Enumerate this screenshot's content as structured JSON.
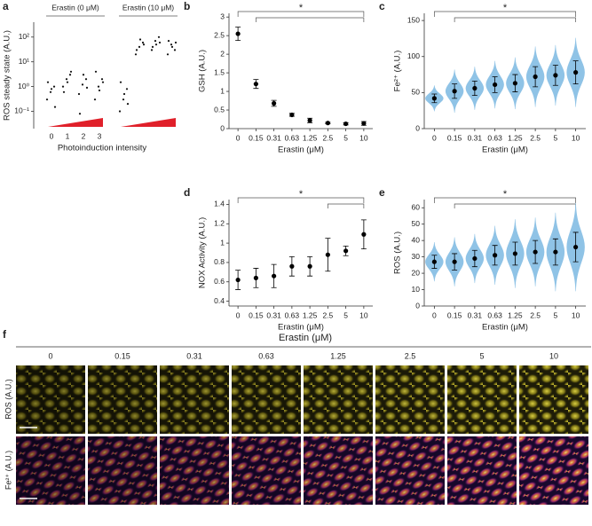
{
  "chart_data": [
    {
      "type": "strip",
      "panel_label": "a",
      "ylabel": "ROS steady state (A.U.)",
      "xlabel": "Photoinduction intensity",
      "log_y": true,
      "ylim": [
        0.02,
        400
      ],
      "yticks": [
        {
          "value": 0.1,
          "label": "10⁻¹"
        },
        {
          "value": 1,
          "label": "10⁰"
        },
        {
          "value": 10,
          "label": "10¹"
        },
        {
          "value": 100,
          "label": "10²"
        }
      ],
      "categories": [
        "0",
        "1",
        "2",
        "3"
      ],
      "color": "#111111",
      "wedge_color": "#e0202a",
      "series": [
        {
          "name": "Erastin (0 μM)",
          "values": [
            [
              0.3,
              0.6,
              1,
              1.5,
              0.8,
              0.15
            ],
            [
              1,
              2,
              3,
              0.6,
              1.5,
              4
            ],
            [
              0.5,
              1.2,
              2,
              0.08,
              3,
              0.9
            ],
            [
              0.3,
              1,
              2,
              4,
              0.7,
              1.5
            ]
          ]
        },
        {
          "name": "Erastin (10 μM)",
          "values": [
            [
              0.1,
              0.3,
              0.8,
              1.5,
              0.5,
              0.2
            ],
            [
              20,
              40,
              60,
              30,
              80,
              50
            ],
            [
              30,
              70,
              100,
              40,
              50,
              60
            ],
            [
              20,
              50,
              30,
              70,
              40,
              60
            ]
          ]
        }
      ]
    },
    {
      "type": "errorbar",
      "panel_label": "b",
      "ylabel": "GSH (A.U.)",
      "xlabel": "Erastin (μM)",
      "annotation": "*",
      "ylim": [
        0,
        3.1
      ],
      "yticks": [
        0,
        0.5,
        1,
        1.5,
        2,
        2.5,
        3
      ],
      "categories": [
        "0",
        "0.15",
        "0.31",
        "0.63",
        "1.25",
        "2.5",
        "5",
        "10"
      ],
      "values": [
        2.55,
        1.2,
        0.68,
        0.37,
        0.22,
        0.15,
        0.13,
        0.14
      ],
      "errors": [
        0.18,
        0.12,
        0.08,
        0.04,
        0.06,
        0.02,
        0.03,
        0.05
      ],
      "color": "#000000"
    },
    {
      "type": "violin",
      "panel_label": "c",
      "ylabel": "Fe²⁺ (A.U.)",
      "xlabel": "Erastin (μM)",
      "annotation": "*",
      "ylim": [
        0,
        160
      ],
      "yticks": [
        0,
        50,
        100,
        150
      ],
      "categories": [
        "0",
        "0.15",
        "0.31",
        "0.63",
        "1.25",
        "2.5",
        "5",
        "10"
      ],
      "values": [
        42,
        52,
        56,
        61,
        63,
        72,
        74,
        78
      ],
      "errors": [
        6,
        10,
        10,
        11,
        12,
        14,
        14,
        16
      ],
      "color": "#8fc3e6"
    },
    {
      "type": "errorbar",
      "panel_label": "d",
      "ylabel": "NOX Activity (A.U.)",
      "xlabel": "Erastin (μM)",
      "annotation": "*",
      "ylim": [
        0.35,
        1.45
      ],
      "yticks": [
        0.4,
        0.6,
        0.8,
        1,
        1.2,
        1.4
      ],
      "categories": [
        "0",
        "0.15",
        "0.31",
        "0.63",
        "1.25",
        "2.5",
        "5",
        "10"
      ],
      "values": [
        0.62,
        0.64,
        0.66,
        0.76,
        0.76,
        0.88,
        0.92,
        1.09
      ],
      "errors": [
        0.1,
        0.1,
        0.12,
        0.1,
        0.1,
        0.17,
        0.05,
        0.15
      ],
      "color": "#000000"
    },
    {
      "type": "violin",
      "panel_label": "e",
      "ylabel": "ROS (A.U.)",
      "xlabel": "Erastin (μM)",
      "annotation": "*",
      "ylim": [
        0,
        65
      ],
      "yticks": [
        0,
        10,
        20,
        30,
        40,
        50,
        60
      ],
      "categories": [
        "0",
        "0.15",
        "0.31",
        "0.63",
        "1.25",
        "2.5",
        "5",
        "10"
      ],
      "values": [
        27,
        27,
        29,
        31,
        32,
        33,
        33,
        36
      ],
      "errors": [
        4,
        5,
        5,
        6,
        7,
        7,
        8,
        9
      ],
      "color": "#8fc3e6"
    }
  ],
  "figure_f": {
    "panel_label": "f",
    "title": "Erastin (μM)",
    "columns": [
      "0",
      "0.15",
      "0.31",
      "0.63",
      "1.25",
      "2.5",
      "5",
      "10"
    ],
    "rows": [
      "ROS (A.U.)",
      "Fe²⁺ (A.U.)"
    ]
  }
}
